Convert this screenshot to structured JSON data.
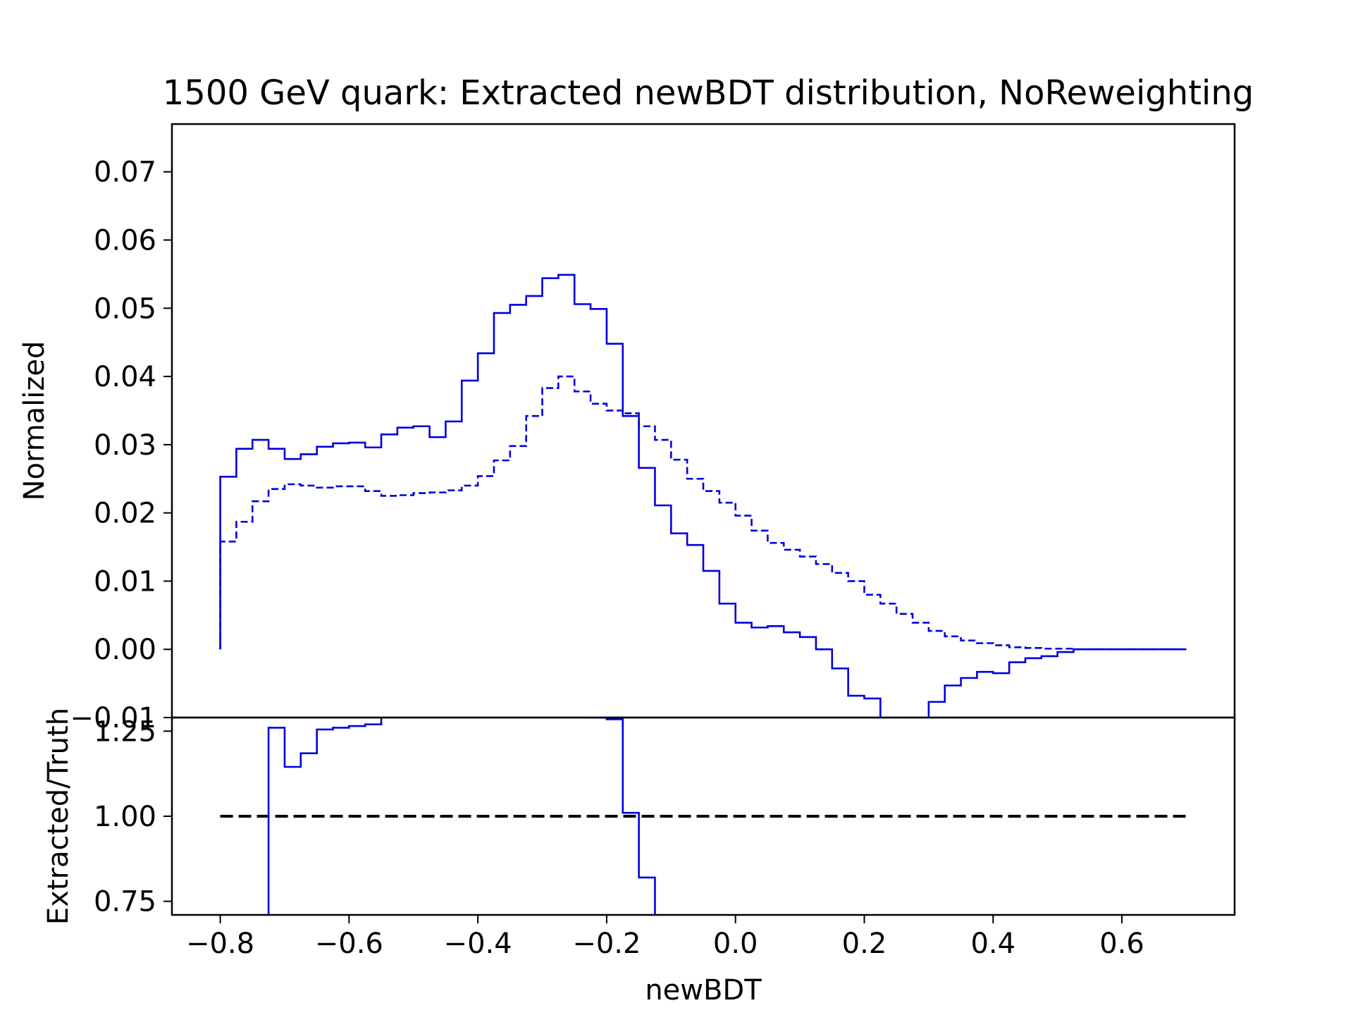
{
  "chart_data": [
    {
      "type": "step",
      "title": "1500 GeV quark: Extracted newBDT distribution, NoReweighting",
      "xlabel": "",
      "ylabel": "Normalized",
      "xlim": [
        -0.875,
        0.775
      ],
      "ylim": [
        -0.01,
        0.077
      ],
      "yticks": [
        -0.01,
        0.0,
        0.01,
        0.02,
        0.03,
        0.04,
        0.05,
        0.06,
        0.07
      ],
      "ytick_labels": [
        "−0.01",
        "0.00",
        "0.01",
        "0.02",
        "0.03",
        "0.04",
        "0.05",
        "0.06",
        "0.07"
      ],
      "grid": false,
      "bin_edges": [
        -0.8,
        -0.775,
        -0.75,
        -0.725,
        -0.7,
        -0.675,
        -0.65,
        -0.625,
        -0.6,
        -0.575,
        -0.55,
        -0.525,
        -0.5,
        -0.475,
        -0.45,
        -0.425,
        -0.4,
        -0.375,
        -0.35,
        -0.325,
        -0.3,
        -0.275,
        -0.25,
        -0.225,
        -0.2,
        -0.175,
        -0.15,
        -0.125,
        -0.1,
        -0.075,
        -0.05,
        -0.025,
        0.0,
        0.025,
        0.05,
        0.075,
        0.1,
        0.125,
        0.15,
        0.175,
        0.2,
        0.225,
        0.25,
        0.275,
        0.3,
        0.325,
        0.35,
        0.375,
        0.4,
        0.425,
        0.45,
        0.475,
        0.5,
        0.525,
        0.55,
        0.575,
        0.6,
        0.625,
        0.65,
        0.675,
        0.7
      ],
      "series": [
        {
          "style": "solid",
          "color": "#0000dd",
          "values": [
            0.0253,
            0.0294,
            0.0307,
            0.0294,
            0.0279,
            0.0286,
            0.0297,
            0.0302,
            0.0303,
            0.0296,
            0.0315,
            0.0325,
            0.0327,
            0.0311,
            0.0334,
            0.0394,
            0.0434,
            0.0493,
            0.0505,
            0.0518,
            0.0544,
            0.0549,
            0.0506,
            0.0499,
            0.0448,
            0.0342,
            0.0266,
            0.0211,
            0.017,
            0.0153,
            0.0115,
            0.0067,
            0.0039,
            0.0032,
            0.0034,
            0.0025,
            0.0018,
            0.0,
            -0.0028,
            -0.0068,
            -0.0072,
            -0.0105,
            -0.013,
            -0.013,
            -0.0077,
            -0.0053,
            -0.0042,
            -0.0033,
            -0.0035,
            -0.0019,
            -0.0013,
            -0.001,
            -0.0004,
            0.0,
            0.0,
            0.0,
            0.0,
            0.0,
            0.0,
            0.0
          ]
        },
        {
          "style": "dashed",
          "color": "#0000dd",
          "values": [
            0.0158,
            0.0187,
            0.0217,
            0.0235,
            0.0242,
            0.024,
            0.0237,
            0.0239,
            0.0239,
            0.0232,
            0.0225,
            0.0226,
            0.0229,
            0.023,
            0.0233,
            0.024,
            0.0254,
            0.0277,
            0.0298,
            0.0342,
            0.0383,
            0.04,
            0.0378,
            0.036,
            0.035,
            0.0346,
            0.0327,
            0.0307,
            0.0278,
            0.025,
            0.0232,
            0.0215,
            0.0196,
            0.0174,
            0.0156,
            0.0146,
            0.0136,
            0.0125,
            0.0112,
            0.01,
            0.008,
            0.0067,
            0.0052,
            0.0039,
            0.0027,
            0.0019,
            0.0013,
            0.0009,
            0.0006,
            0.0003,
            0.0002,
            0.0001,
            0.0001,
            0.0,
            0.0,
            0.0,
            0.0,
            0.0,
            0.0,
            0.0
          ]
        }
      ]
    },
    {
      "type": "step",
      "title": "",
      "xlabel": "newBDT",
      "ylabel": "Extracted/Truth",
      "xlim": [
        -0.875,
        0.775
      ],
      "ylim": [
        0.71,
        1.29
      ],
      "xticks": [
        -0.8,
        -0.6,
        -0.4,
        -0.2,
        0.0,
        0.2,
        0.4,
        0.6
      ],
      "xtick_labels": [
        "−0.8",
        "−0.6",
        "−0.4",
        "−0.2",
        "0.0",
        "0.2",
        "0.4",
        "0.6"
      ],
      "yticks": [
        0.75,
        1.0,
        1.25
      ],
      "ytick_labels": [
        "0.75",
        "1.00",
        "1.25"
      ],
      "grid": false,
      "reference_line": {
        "y": 1.0,
        "style": "dashed",
        "color": "#000000"
      },
      "series": [
        {
          "style": "solid",
          "color": "#0000dd",
          "bin_edges": [
            -0.8,
            -0.725,
            -0.7,
            -0.675,
            -0.65,
            -0.625,
            -0.6,
            -0.575,
            -0.55,
            -0.225,
            -0.2,
            -0.175,
            -0.15,
            -0.125
          ],
          "values": [
            0.5,
            1.26,
            1.145,
            1.185,
            1.255,
            1.26,
            1.265,
            1.27,
            1.5,
            1.29,
            1.285,
            1.01,
            0.82,
            0.5
          ]
        }
      ]
    }
  ]
}
